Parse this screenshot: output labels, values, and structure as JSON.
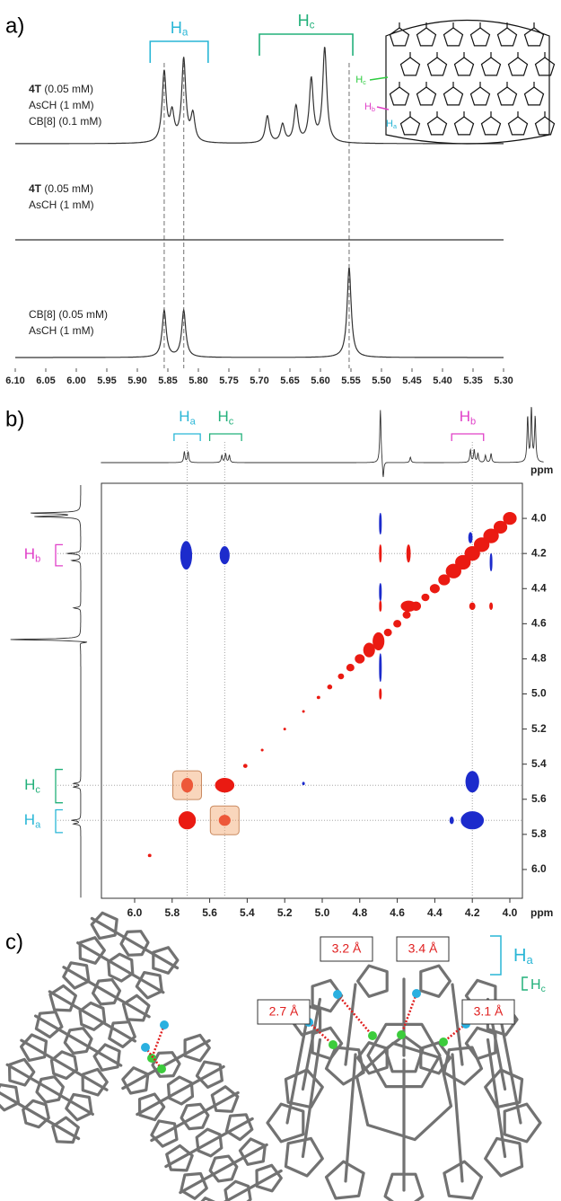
{
  "panels": {
    "a": "a)",
    "b": "b)",
    "c": "c)"
  },
  "chart_data": [
    {
      "type": "spectrum",
      "xlim": [
        6.1,
        5.3
      ],
      "xticks": [
        {
          "value": 6.1,
          "label": "6.10"
        },
        6.05,
        {
          "value": 6.0,
          "label": "6.00"
        },
        5.95,
        {
          "value": 5.9,
          "label": "5.90"
        },
        5.85,
        {
          "value": 5.8,
          "label": "5.80"
        },
        5.75,
        {
          "value": 5.7,
          "label": "5.70"
        },
        5.65,
        {
          "value": 5.6,
          "label": "5.60"
        },
        5.55,
        {
          "value": 5.5,
          "label": "5.50"
        },
        5.45,
        {
          "value": 5.4,
          "label": "5.40"
        },
        5.35,
        {
          "value": 5.3,
          "label": "5.30"
        }
      ],
      "line_color": "#333333",
      "traces": [
        {
          "label_lines": [
            [
              {
                "text": "4T",
                "bold": true
              },
              {
                "text": " (0.05 mM)"
              }
            ],
            [
              {
                "text": "AsCH (1 mM)"
              }
            ],
            [
              {
                "text": "CB[8] (0.1 mM)"
              }
            ]
          ],
          "peaks": [
            5.856,
            5.843,
            5.824,
            5.809,
            5.687,
            5.662,
            5.64,
            5.615,
            5.593
          ],
          "heights": [
            78,
            30,
            92,
            30,
            30,
            20,
            40,
            70,
            105
          ]
        },
        {
          "label_lines": [
            [
              {
                "text": "4T",
                "bold": true
              },
              {
                "text": " (0.05 mM)"
              }
            ],
            [
              {
                "text": "AsCH (1 mM)"
              }
            ]
          ],
          "peaks": [],
          "heights": []
        },
        {
          "label_lines": [
            [
              {
                "text": "CB[8] (0.05 mM)"
              }
            ],
            [
              {
                "text": "AsCH (1 mM)"
              }
            ]
          ],
          "peaks": [
            5.856,
            5.824,
            5.553
          ],
          "heights": [
            52,
            52,
            100
          ]
        }
      ],
      "brackets": [
        {
          "main": "H",
          "sub": "a",
          "color": "#29b6d6",
          "range": [
            5.879,
            5.784
          ]
        },
        {
          "main": "H",
          "sub": "c",
          "color": "#22b07a",
          "range": [
            5.7,
            5.547
          ]
        }
      ],
      "guides": [
        5.856,
        5.824,
        5.553
      ],
      "structure_labels": [
        {
          "main": "H",
          "sub": "c",
          "color": "#2ecc40"
        },
        {
          "main": "H",
          "sub": "b",
          "color": "#e040c8"
        },
        {
          "main": "H",
          "sub": "a",
          "color": "#29b6d6"
        }
      ]
    },
    {
      "type": "noesy",
      "xlim": [
        6.177,
        3.933
      ],
      "ylim": [
        3.8,
        6.164
      ],
      "xticks": [
        {
          "value": 6,
          "label": "6.0"
        },
        5.8,
        5.6,
        5.4,
        5.2,
        {
          "value": 5,
          "label": "5.0"
        },
        4.8,
        4.6,
        4.4,
        4.2,
        {
          "value": 4,
          "label": "4.0"
        }
      ],
      "yticks": [
        {
          "value": 4,
          "label": "4.0"
        },
        4.2,
        4.4,
        4.6,
        4.8,
        {
          "value": 5,
          "label": "5.0"
        },
        5.2,
        5.4,
        5.6,
        5.8,
        {
          "value": 6,
          "label": "6.0"
        }
      ],
      "unit": "ppm",
      "series": [
        {
          "color": "#1c2bcc",
          "x": [
            5.725,
            5.52,
            4.69,
            4.69,
            4.69,
            4.2,
            4.2,
            4.31,
            4.1,
            5.1,
            4.21
          ],
          "y": [
            4.21,
            4.21,
            4.03,
            4.42,
            4.85,
            5.5,
            5.72,
            5.72,
            4.25,
            5.51,
            4.11
          ],
          "dx": [
            0.03,
            0.025,
            0.005,
            0.004,
            0.004,
            0.035,
            0.06,
            0.01,
            0.005,
            0.005,
            0.01
          ],
          "dy": [
            0.08,
            0.05,
            0.06,
            0.05,
            0.08,
            0.06,
            0.05,
            0.02,
            0.05,
            0.008,
            0.03
          ]
        },
        {
          "color": "#ea1a12",
          "x": [
            5.72,
            5.52,
            5.72,
            5.52,
            4.69,
            4.69,
            4.69,
            4.54,
            4.54,
            4.2,
            4.1,
            5.92,
            5.41,
            5.32,
            5.2,
            5.1,
            5.02,
            4.96,
            4.9,
            4.85,
            4.8,
            4.75,
            4.7,
            4.65,
            4.6,
            4.55,
            4.5,
            4.45,
            4.4,
            4.35,
            4.3,
            4.25,
            4.2,
            4.15,
            4.1,
            4.05,
            4.0
          ],
          "y": [
            5.72,
            5.52,
            5.52,
            5.72,
            4.2,
            4.5,
            5.0,
            4.2,
            4.5,
            4.5,
            4.5,
            5.92,
            5.41,
            5.32,
            5.2,
            5.1,
            5.02,
            4.96,
            4.9,
            4.85,
            4.8,
            4.75,
            4.7,
            4.65,
            4.6,
            4.55,
            4.5,
            4.45,
            4.4,
            4.35,
            4.3,
            4.25,
            4.2,
            4.15,
            4.1,
            4.05,
            4.0
          ],
          "dx": [
            0.045,
            0.05,
            0.03,
            0.03,
            0.005,
            0.005,
            0.003,
            0.01,
            0.04,
            0.015,
            0.008,
            0.008,
            0.01,
            0.006,
            0.004,
            0.004,
            0.008,
            0.012,
            0.015,
            0.02,
            0.025,
            0.03,
            0.03,
            0.02,
            0.02,
            0.02,
            0.025,
            0.02,
            0.025,
            0.03,
            0.04,
            0.04,
            0.04,
            0.04,
            0.04,
            0.035,
            0.035
          ],
          "dy": [
            0.05,
            0.04,
            0.04,
            0.03,
            0.05,
            0.03,
            0.03,
            0.05,
            0.03,
            0.02,
            0.02,
            0.008,
            0.01,
            0.006,
            0.004,
            0.004,
            0.008,
            0.012,
            0.015,
            0.02,
            0.025,
            0.04,
            0.05,
            0.02,
            0.02,
            0.02,
            0.025,
            0.02,
            0.025,
            0.03,
            0.04,
            0.04,
            0.04,
            0.04,
            0.04,
            0.035,
            0.035
          ]
        }
      ],
      "projection_top": {
        "xlim": [
          6.18,
          3.82
        ],
        "peaks": [
          5.735,
          5.715,
          5.535,
          5.515,
          5.495,
          4.69,
          4.675,
          4.53,
          4.21,
          4.19,
          4.17,
          4.13,
          4.1,
          3.905,
          3.885,
          3.865
        ],
        "heights": [
          12,
          12,
          8,
          10,
          8,
          60,
          -20,
          6,
          14,
          14,
          10,
          8,
          10,
          50,
          60,
          50
        ]
      },
      "projection_left": {
        "ylim": [
          3.81,
          6.16
        ],
        "peaks": [
          3.97,
          3.99,
          4.2,
          4.24,
          4.51,
          4.69,
          4.705,
          5.51,
          5.53,
          5.72,
          5.74
        ],
        "heights": [
          55,
          50,
          15,
          10,
          8,
          80,
          -12,
          8,
          8,
          10,
          8
        ]
      },
      "brackets_top": [
        {
          "main": "H",
          "sub": "a",
          "color": "#29b6d6",
          "range": [
            5.79,
            5.65
          ]
        },
        {
          "main": "H",
          "sub": "c",
          "color": "#22b07a",
          "range": [
            5.6,
            5.43
          ]
        },
        {
          "main": "H",
          "sub": "b",
          "color": "#e040c8",
          "range": [
            4.31,
            4.14
          ]
        }
      ],
      "brackets_left": [
        {
          "main": "H",
          "sub": "b",
          "color": "#e040c8",
          "range": [
            4.15,
            4.27
          ]
        },
        {
          "main": "H",
          "sub": "c",
          "color": "#22b07a",
          "range": [
            5.43,
            5.62
          ]
        },
        {
          "main": "H",
          "sub": "a",
          "color": "#29b6d6",
          "range": [
            5.66,
            5.79
          ]
        }
      ],
      "guides_x": [
        5.72,
        5.52,
        4.2
      ],
      "guides_y": [
        4.2,
        5.52,
        5.72
      ],
      "highlights": [
        {
          "x": 5.72,
          "y": 5.52
        },
        {
          "x": 5.52,
          "y": 5.72
        }
      ]
    }
  ],
  "panel_c": {
    "distances": [
      "3.2 Å",
      "3.4 Å",
      "2.7 Å",
      "3.1 Å"
    ],
    "brackets": [
      {
        "main": "H",
        "sub": "a",
        "color": "#29b6d6"
      },
      {
        "main": "H",
        "sub": "c",
        "color": "#22b07a"
      }
    ]
  }
}
